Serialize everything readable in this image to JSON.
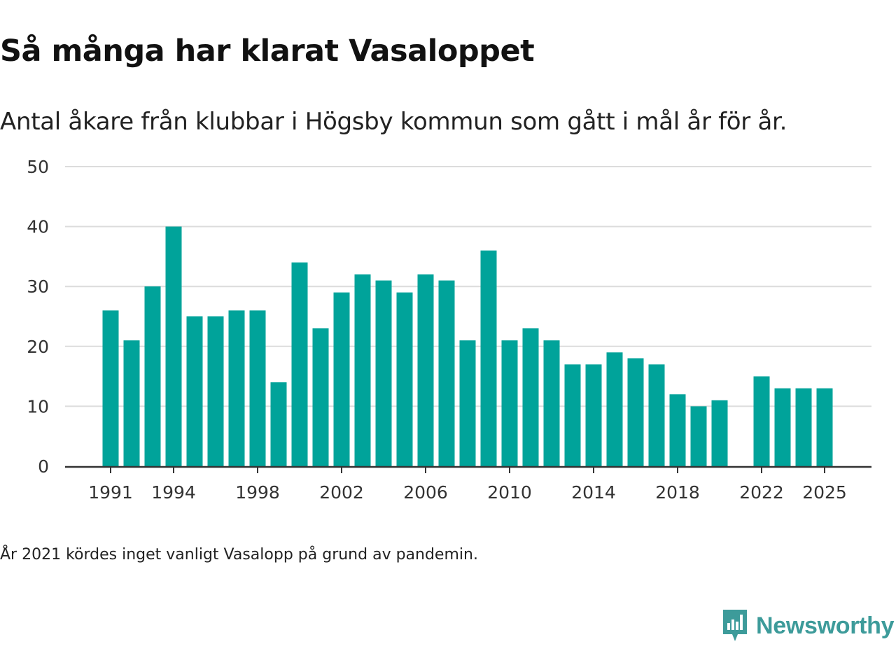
{
  "title": "Så många har klarat Vasaloppet",
  "subtitle": "Antal åkare från klubbar i Högsby kommun som gått i mål år för år.",
  "footnote": "År 2021 kördes inget vanligt Vasalopp på grund av pandemin.",
  "brand": {
    "name": "Newsworthy",
    "color": "#3d9b9a",
    "icon": "newsworthy-logo-icon"
  },
  "colors": {
    "bar": "#00a39a",
    "grid": "#dcdcdc",
    "axis": "#333333"
  },
  "chart_data": {
    "type": "bar",
    "title": "Så många har klarat Vasaloppet",
    "xlabel": "",
    "ylabel": "",
    "ylim": [
      0,
      50
    ],
    "yticks": [
      0,
      10,
      20,
      30,
      40,
      50
    ],
    "xticks": [
      1991,
      1994,
      1998,
      2002,
      2006,
      2010,
      2014,
      2018,
      2022,
      2025
    ],
    "grid": true,
    "legend": "none",
    "categories": [
      1991,
      1992,
      1993,
      1994,
      1995,
      1996,
      1997,
      1998,
      1999,
      2000,
      2001,
      2002,
      2003,
      2004,
      2005,
      2006,
      2007,
      2008,
      2009,
      2010,
      2011,
      2012,
      2013,
      2014,
      2015,
      2016,
      2017,
      2018,
      2019,
      2020,
      2021,
      2022,
      2023,
      2024,
      2025
    ],
    "values": [
      26,
      21,
      30,
      40,
      25,
      25,
      26,
      26,
      14,
      34,
      23,
      29,
      32,
      31,
      29,
      32,
      31,
      21,
      36,
      21,
      23,
      21,
      17,
      17,
      19,
      18,
      17,
      12,
      10,
      11,
      null,
      15,
      13,
      13,
      13
    ]
  }
}
